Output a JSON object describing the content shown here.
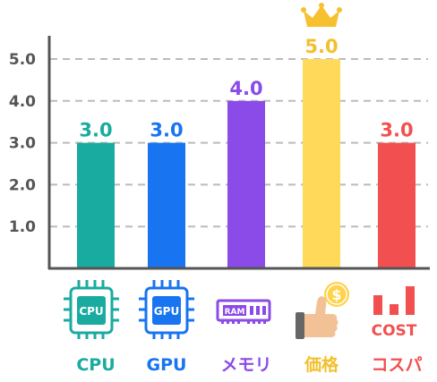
{
  "chart_data": {
    "type": "bar",
    "categories": [
      "CPU",
      "GPU",
      "メモリ",
      "価格",
      "コスパ"
    ],
    "values": [
      3.0,
      3.0,
      4.0,
      5.0,
      3.0
    ],
    "value_labels": [
      "3.0",
      "3.0",
      "4.0",
      "5.0",
      "3.0"
    ],
    "colors": [
      "#1aaba0",
      "#1874f0",
      "#8a4be8",
      "#ffd95a",
      "#f25050"
    ],
    "label_colors": [
      "#1aaba0",
      "#1874f0",
      "#8a4be8",
      "#f2c02e",
      "#f25050"
    ],
    "yticks": [
      "1.0",
      "2.0",
      "3.0",
      "4.0",
      "5.0"
    ],
    "ylim": [
      0,
      5.5
    ],
    "grid": true,
    "title": "",
    "xlabel": "",
    "ylabel": "",
    "top_marker": "crown-icon"
  },
  "icons": [
    {
      "name": "cpu-icon",
      "text": "CPU"
    },
    {
      "name": "gpu-icon",
      "text": "GPU"
    },
    {
      "name": "ram-icon",
      "text": "RAM"
    },
    {
      "name": "price-thumbs-up-icon",
      "text": "$"
    },
    {
      "name": "cost-performance-icon",
      "text": "COST"
    }
  ]
}
